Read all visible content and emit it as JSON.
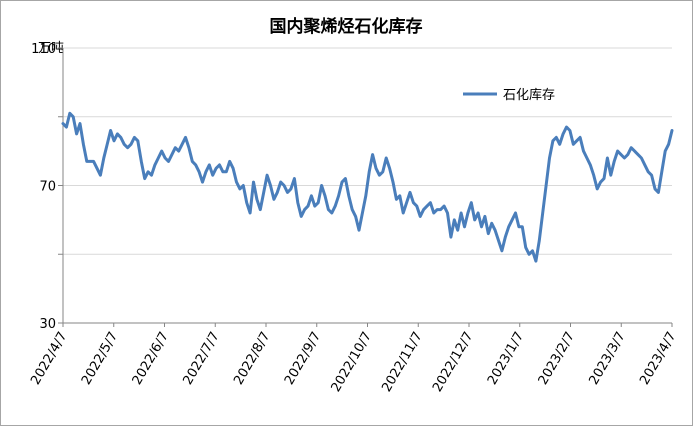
{
  "chart_data": {
    "type": "line",
    "title": "国内聚烯烃石化库存",
    "ylabel": "万吨",
    "xlabel": "",
    "ylim": [
      30,
      110
    ],
    "yticks": [
      30,
      70,
      110
    ],
    "grid": "horizontal",
    "legend_placement": "top-right",
    "x_ticks": [
      "2022/4/7",
      "2022/5/7",
      "2022/6/7",
      "2022/7/7",
      "2022/8/7",
      "2022/9/7",
      "2022/10/7",
      "2022/11/7",
      "2022/12/7",
      "2023/1/7",
      "2023/2/7",
      "2023/3/7",
      "2023/4/7"
    ],
    "series": [
      {
        "name": "石化库存",
        "color": "#4a7ebb",
        "values": [
          88,
          87,
          91,
          90,
          85,
          88,
          82,
          77,
          77,
          77,
          75,
          73,
          78,
          82,
          86,
          83,
          85,
          84,
          82,
          81,
          82,
          84,
          83,
          77,
          72,
          74,
          73,
          76,
          78,
          80,
          78,
          77,
          79,
          81,
          80,
          82,
          84,
          81,
          77,
          76,
          74,
          71,
          74,
          76,
          73,
          75,
          76,
          74,
          74,
          77,
          75,
          71,
          69,
          70,
          65,
          62,
          71,
          66,
          63,
          68,
          73,
          70,
          66,
          68,
          71,
          70,
          68,
          69,
          72,
          65,
          61,
          63,
          64,
          67,
          64,
          65,
          70,
          67,
          63,
          62,
          64,
          67,
          71,
          72,
          67,
          63,
          61,
          57,
          62,
          67,
          74,
          79,
          75,
          73,
          74,
          78,
          75,
          71,
          66,
          67,
          62,
          65,
          68,
          65,
          64,
          61,
          63,
          64,
          65,
          62,
          63,
          63,
          64,
          62,
          55,
          60,
          57,
          62,
          58,
          62,
          65,
          60,
          62,
          58,
          61,
          56,
          59,
          57,
          54,
          51,
          55,
          58,
          60,
          62,
          58,
          58,
          52,
          50,
          51,
          48,
          54,
          62,
          70,
          78,
          83,
          84,
          82,
          85,
          87,
          86,
          82,
          83,
          84,
          80,
          78,
          76,
          73,
          69,
          71,
          72,
          78,
          73,
          77,
          80,
          79,
          78,
          79,
          81,
          80,
          79,
          78,
          76,
          74,
          73,
          69,
          68,
          74,
          80,
          82,
          86
        ]
      }
    ]
  }
}
